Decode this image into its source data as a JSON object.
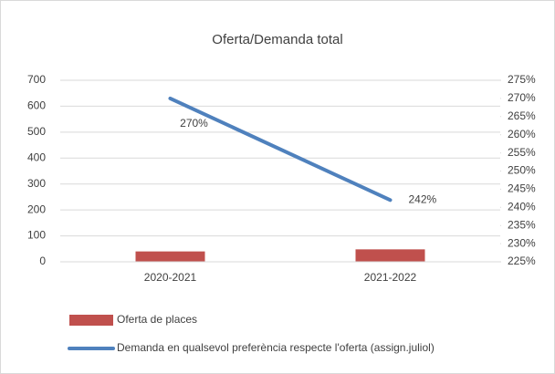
{
  "chart_data": {
    "type": "bar",
    "title": "Oferta/Demanda total",
    "categories": [
      "2020-2021",
      "2021-2022"
    ],
    "series": [
      {
        "name": "Oferta de places",
        "type": "bar",
        "color": "#c0504d",
        "values": [
          40,
          48
        ]
      },
      {
        "name": "Demanda en qualsevol preferència respecte l'oferta (assign.juliol)",
        "type": "line",
        "axis": "y2",
        "color": "#4f81bd",
        "values": [
          270,
          242
        ],
        "value_labels": [
          "270%",
          "242%"
        ]
      }
    ],
    "ylim": [
      0,
      700
    ],
    "yticks": [
      0,
      100,
      200,
      300,
      400,
      500,
      600,
      700
    ],
    "y2lim": [
      225,
      275
    ],
    "y2ticks": [
      {
        "value": 225,
        "label": "225%"
      },
      {
        "value": 230,
        "label": "230%"
      },
      {
        "value": 235,
        "label": "235%"
      },
      {
        "value": 240,
        "label": "240%"
      },
      {
        "value": 245,
        "label": "245%"
      },
      {
        "value": 250,
        "label": "250%"
      },
      {
        "value": 255,
        "label": "255%"
      },
      {
        "value": 260,
        "label": "260%"
      },
      {
        "value": 265,
        "label": "265%"
      },
      {
        "value": 270,
        "label": "270%"
      },
      {
        "value": 275,
        "label": "275%"
      }
    ],
    "grid": true
  }
}
